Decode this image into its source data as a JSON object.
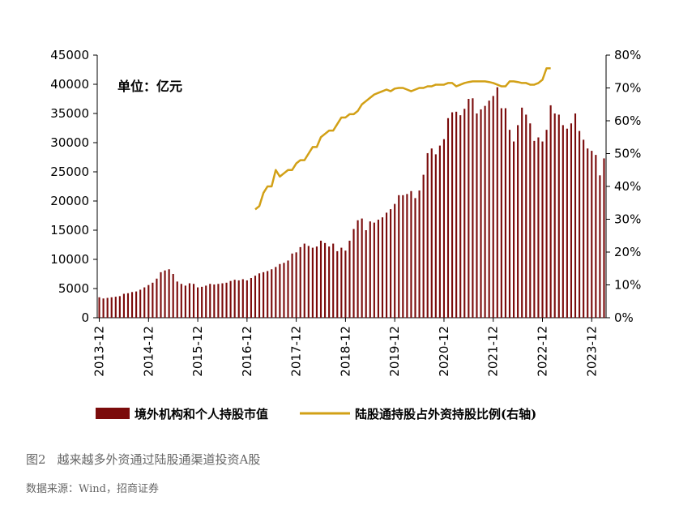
{
  "chart_data": {
    "type": "bar+line",
    "unit_label": "单位：亿元",
    "y_left": {
      "min": 0,
      "max": 45000,
      "ticks": [
        "0",
        "5000",
        "10000",
        "15000",
        "20000",
        "25000",
        "30000",
        "35000",
        "40000",
        "45000"
      ]
    },
    "y_right": {
      "min": 0,
      "max": 80,
      "ticks": [
        "0%",
        "10%",
        "20%",
        "30%",
        "40%",
        "50%",
        "60%",
        "70%",
        "80%"
      ]
    },
    "x_tick_labels": [
      "2013-12",
      "2014-12",
      "2015-12",
      "2016-12",
      "2017-12",
      "2018-12",
      "2019-12",
      "2020-12",
      "2021-12",
      "2022-12",
      "2023-12"
    ],
    "x_tick_month_index": [
      0,
      12,
      24,
      36,
      48,
      60,
      72,
      84,
      96,
      108,
      120
    ],
    "series": [
      {
        "name": "境外机构和个人持股市值",
        "type": "bar",
        "color": "#7b0b0b",
        "values": [
          3500,
          3300,
          3400,
          3500,
          3600,
          3700,
          4100,
          4200,
          4400,
          4500,
          4800,
          5200,
          5600,
          6000,
          6700,
          7800,
          8100,
          8300,
          7500,
          6200,
          5800,
          5500,
          5900,
          5800,
          5200,
          5300,
          5500,
          5800,
          5700,
          5800,
          5900,
          6000,
          6300,
          6500,
          6400,
          6600,
          6400,
          6800,
          7200,
          7600,
          7800,
          8000,
          8300,
          8700,
          9200,
          9400,
          9800,
          11000,
          11200,
          12100,
          12700,
          12300,
          12000,
          12200,
          13200,
          12800,
          12200,
          12700,
          11400,
          12000,
          11500,
          13200,
          15200,
          16700,
          17000,
          15000,
          16500,
          16300,
          16800,
          17200,
          18000,
          18600,
          19500,
          21000,
          21000,
          21200,
          21700,
          20500,
          21800,
          24500,
          28200,
          29000,
          28000,
          29500,
          30600,
          34200,
          35200,
          35300,
          34700,
          35800,
          37500,
          37600,
          35000,
          35700,
          36300,
          37200,
          38000,
          39500,
          35900,
          35900,
          32200,
          30200,
          33000,
          36000,
          34800,
          33300,
          30300,
          30900,
          30200,
          32200,
          36400,
          35000,
          34800,
          33000,
          32400,
          33300,
          35000,
          32000,
          30500,
          29000,
          28600,
          27900,
          24400,
          27300
        ]
      },
      {
        "name": "陆股通持股占外资持股比例(右轴)",
        "type": "line",
        "color": "#d2a016",
        "start_month_index": 38,
        "values": [
          33,
          34,
          38,
          40,
          40,
          45,
          43,
          44,
          45,
          45,
          47,
          48,
          48,
          50,
          52,
          52,
          55,
          56,
          57,
          57,
          59,
          61,
          61,
          62,
          62,
          63,
          65,
          66,
          67,
          68,
          68.5,
          69,
          69.5,
          69,
          69.8,
          70,
          70,
          69.5,
          69,
          69.5,
          70,
          70,
          70.5,
          70.5,
          71,
          71,
          71,
          71.5,
          71.5,
          70.5,
          71,
          71.5,
          71.8,
          72,
          72,
          72,
          72,
          71.8,
          71.5,
          71,
          70.5,
          70.5,
          72,
          72,
          71.8,
          71.5,
          71.5,
          71,
          71,
          71.5,
          72.5,
          76,
          76
        ]
      }
    ]
  },
  "legend": {
    "bar_label": "境外机构和个人持股市值",
    "line_label": "陆股通持股占外资持股比例(右轴)"
  },
  "caption": {
    "figure_number": "图2",
    "title": "越来越多外资通过陆股通渠道投资A股",
    "source": "数据来源：Wind，招商证券"
  }
}
